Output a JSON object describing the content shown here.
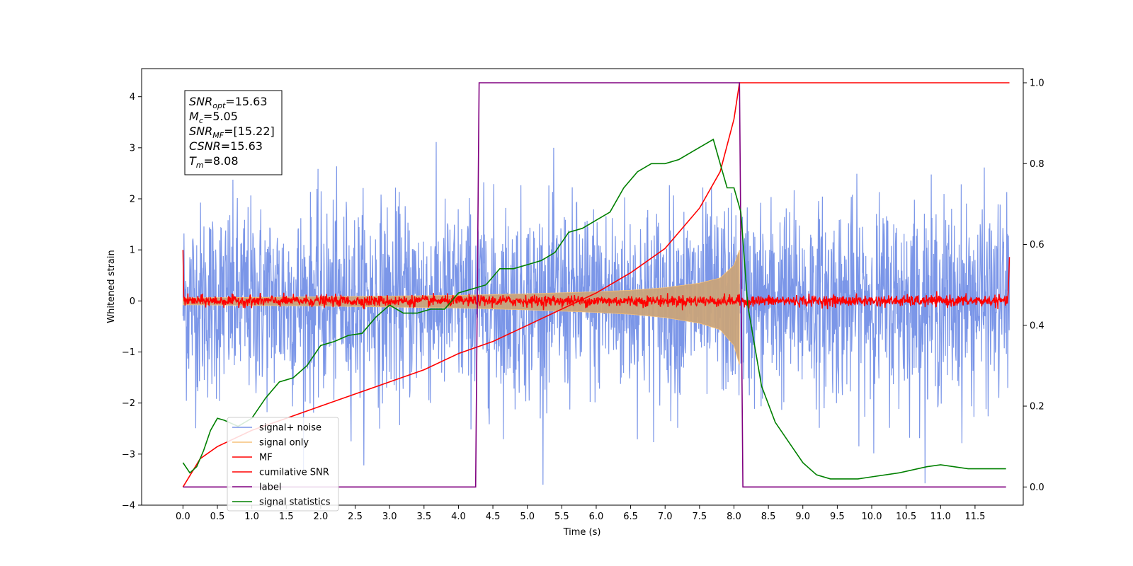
{
  "chart_data": {
    "type": "line",
    "xlabel": "Time (s)",
    "ylabel": "Whitened strain",
    "xlim": [
      -0.6,
      12.2
    ],
    "ylim": [
      -4.0,
      4.55
    ],
    "y2lim": [
      -0.045,
      1.035
    ],
    "xticks": [
      0.0,
      0.5,
      1.0,
      1.5,
      2.0,
      2.5,
      3.0,
      3.5,
      4.0,
      4.5,
      5.0,
      5.5,
      6.0,
      6.5,
      7.0,
      7.5,
      8.0,
      8.5,
      9.0,
      9.5,
      10.0,
      10.5,
      11.0,
      11.5
    ],
    "yticks": [
      -4,
      -3,
      -2,
      -1,
      0,
      1,
      2,
      3,
      4
    ],
    "y2ticks": [
      0.0,
      0.2,
      0.4,
      0.6,
      0.8,
      1.0
    ],
    "grid": false,
    "legend_position": "lower-left",
    "annotation": {
      "lines": [
        {
          "name": "SNR",
          "sub": "opt",
          "value": "=15.63"
        },
        {
          "name": "M",
          "sub": "c",
          "value": "=5.05"
        },
        {
          "name": "SNR",
          "sub": "MF",
          "value": "=[15.22]"
        },
        {
          "name": "CSNR",
          "sub": "",
          "value": "=15.63"
        },
        {
          "name": "T",
          "sub": "m",
          "value": "=8.08"
        }
      ]
    },
    "series": [
      {
        "name": "signal+ noise",
        "color": "#7b96e8",
        "axis": "left",
        "kind": "noise",
        "x_range": [
          0.0,
          12.0
        ],
        "amplitude_range": [
          -3.6,
          4.2
        ]
      },
      {
        "name": "signal only",
        "color": "#f5c07a",
        "axis": "left",
        "kind": "chirp_envelope",
        "x": [
          0.0,
          2.0,
          4.0,
          5.0,
          6.0,
          6.5,
          7.0,
          7.5,
          7.8,
          8.0,
          8.08
        ],
        "y": [
          0.06,
          0.08,
          0.11,
          0.14,
          0.18,
          0.21,
          0.26,
          0.35,
          0.45,
          0.7,
          1.0
        ]
      },
      {
        "name": "MF",
        "color": "#ff0000",
        "axis": "left",
        "kind": "noise_small",
        "x_range": [
          0.0,
          12.0
        ],
        "amplitude": 0.12
      },
      {
        "name": "cumilative SNR",
        "color": "#ff0000",
        "axis": "right",
        "x": [
          0.0,
          0.25,
          0.5,
          1.0,
          1.5,
          2.0,
          2.5,
          3.0,
          3.5,
          4.0,
          4.5,
          5.0,
          5.5,
          6.0,
          6.5,
          7.0,
          7.5,
          7.8,
          8.0,
          8.08,
          12.0
        ],
        "y": [
          0.0,
          0.07,
          0.1,
          0.14,
          0.17,
          0.2,
          0.23,
          0.26,
          0.29,
          0.33,
          0.36,
          0.4,
          0.44,
          0.48,
          0.53,
          0.59,
          0.69,
          0.78,
          0.91,
          1.0,
          1.0
        ]
      },
      {
        "name": "label",
        "color": "#800080",
        "axis": "right",
        "x": [
          0.0,
          4.25,
          4.3,
          8.08,
          8.13,
          11.95
        ],
        "y": [
          0.0,
          0.0,
          1.0,
          1.0,
          0.0,
          0.0
        ]
      },
      {
        "name": "signal statistics",
        "color": "#008000",
        "axis": "right",
        "x": [
          0.0,
          0.1,
          0.2,
          0.3,
          0.4,
          0.5,
          0.6,
          0.8,
          1.0,
          1.2,
          1.4,
          1.6,
          1.8,
          2.0,
          2.2,
          2.4,
          2.6,
          2.8,
          3.0,
          3.2,
          3.4,
          3.6,
          3.8,
          4.0,
          4.2,
          4.4,
          4.6,
          4.8,
          5.0,
          5.2,
          5.4,
          5.6,
          5.8,
          6.0,
          6.2,
          6.4,
          6.6,
          6.8,
          7.0,
          7.2,
          7.4,
          7.6,
          7.7,
          7.8,
          7.9,
          8.0,
          8.1,
          8.2,
          8.4,
          8.6,
          8.8,
          9.0,
          9.2,
          9.4,
          9.6,
          9.8,
          10.0,
          10.4,
          10.8,
          11.0,
          11.4,
          11.95
        ],
        "y": [
          0.06,
          0.035,
          0.05,
          0.09,
          0.14,
          0.17,
          0.165,
          0.15,
          0.17,
          0.22,
          0.26,
          0.27,
          0.3,
          0.35,
          0.36,
          0.375,
          0.38,
          0.42,
          0.45,
          0.43,
          0.43,
          0.44,
          0.44,
          0.48,
          0.49,
          0.5,
          0.54,
          0.54,
          0.55,
          0.56,
          0.58,
          0.63,
          0.64,
          0.66,
          0.68,
          0.74,
          0.78,
          0.8,
          0.8,
          0.81,
          0.83,
          0.85,
          0.86,
          0.8,
          0.74,
          0.74,
          0.68,
          0.45,
          0.25,
          0.16,
          0.11,
          0.06,
          0.03,
          0.02,
          0.02,
          0.02,
          0.025,
          0.035,
          0.05,
          0.055,
          0.045,
          0.045
        ]
      }
    ]
  }
}
